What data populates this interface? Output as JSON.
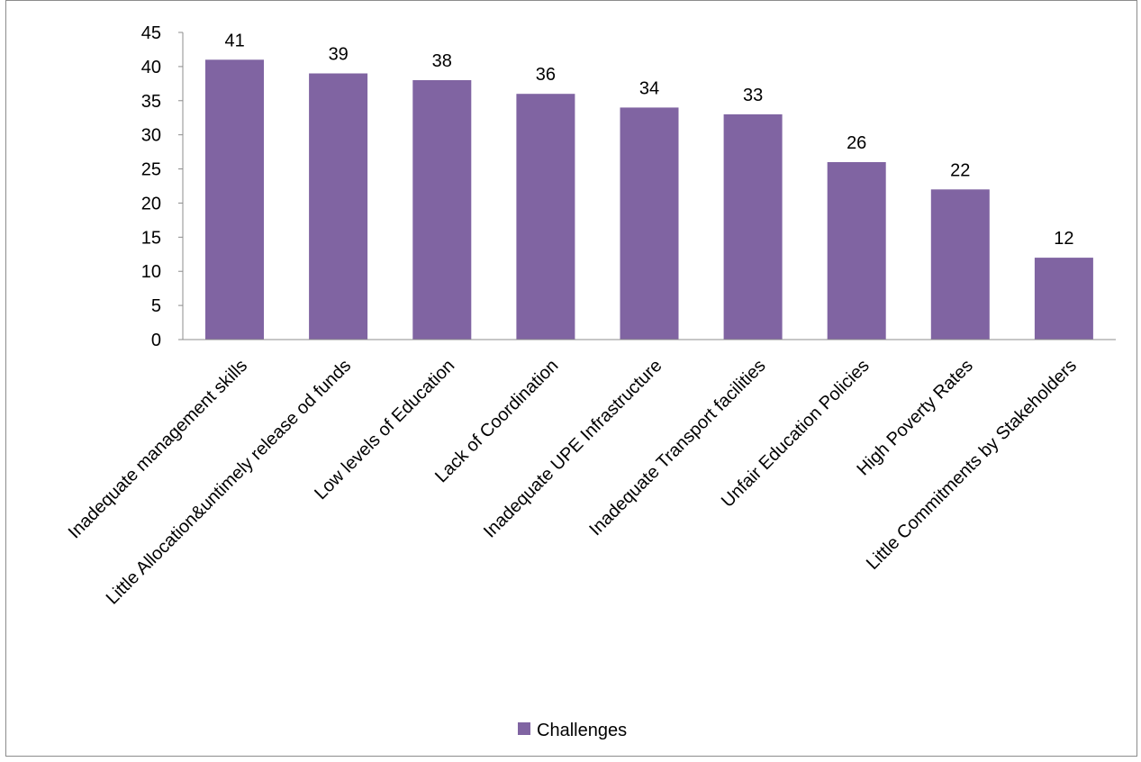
{
  "chart_data": {
    "type": "bar",
    "categories": [
      "Inadequate management skills",
      "Little Allocation&untimely release od funds",
      "Low levels of Education",
      "Lack of Coordination",
      "Inadequate UPE Infrastructure",
      "Inadequate Transport facilities",
      "Unfair Education Policies",
      "High Poverty Rates",
      "Little Commitments by Stakeholders"
    ],
    "series": [
      {
        "name": "Challenges",
        "values": [
          41,
          39,
          38,
          36,
          34,
          33,
          26,
          22,
          12
        ],
        "color": "#8064A2"
      }
    ],
    "yticks": [
      "0",
      "5",
      "10",
      "15",
      "20",
      "25",
      "30",
      "35",
      "40",
      "45"
    ],
    "ylim": [
      0,
      45
    ],
    "grid": false,
    "legend_position": "bottom",
    "title": "",
    "xlabel": "",
    "ylabel": ""
  }
}
